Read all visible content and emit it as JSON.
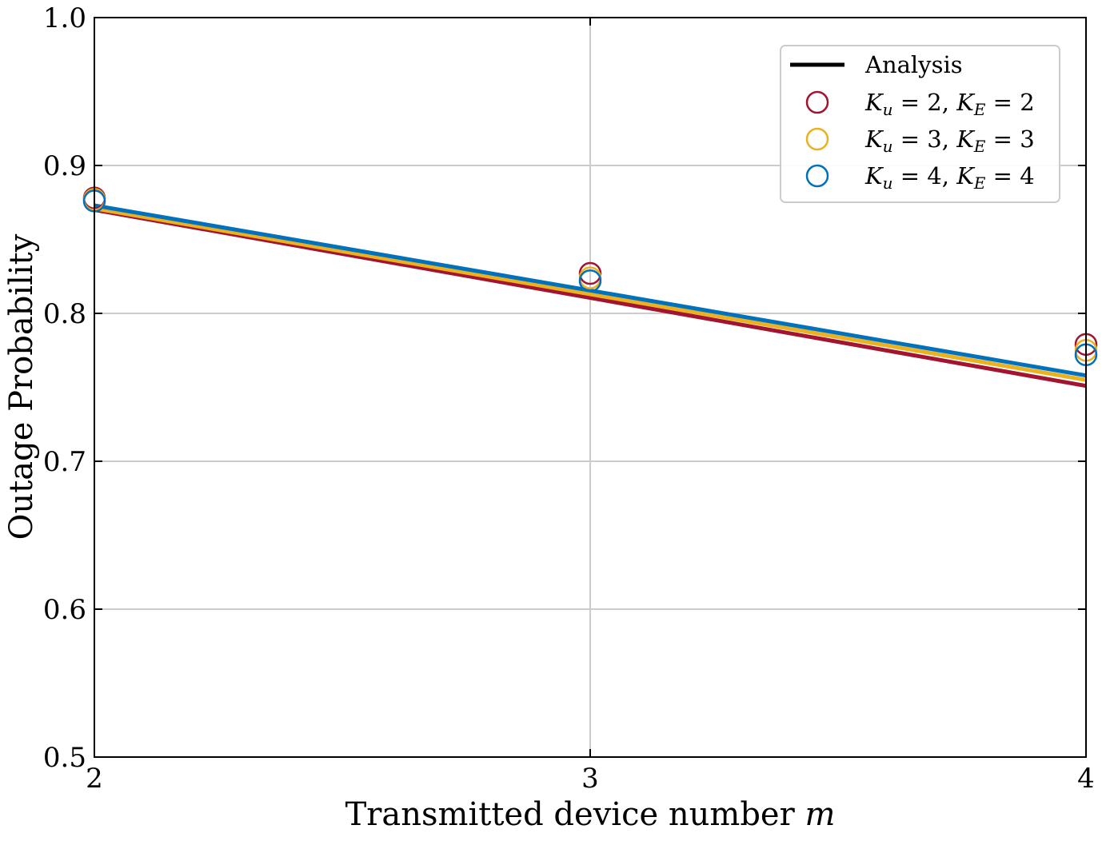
{
  "chart_data": {
    "type": "line",
    "xlabel": "Transmitted device number",
    "xlabel_var": "m",
    "ylabel": "Outage Probability",
    "xlim": [
      2,
      4
    ],
    "ylim": [
      0.5,
      1.0
    ],
    "xticks": [
      "2",
      "3",
      "4"
    ],
    "yticks": [
      "0.5",
      "0.6",
      "0.7",
      "0.8",
      "0.9",
      "1.0"
    ],
    "grid": true,
    "legend_position": "top-right",
    "analysis_label": "Analysis",
    "series": [
      {
        "name": "K_u = 2, K_E = 2",
        "label_parts": {
          "a": "K",
          "a_sub": "u",
          "a_val": "2",
          "b": "K",
          "b_sub": "E",
          "b_val": "2"
        },
        "color": "#A2142F",
        "analysis_x": [
          2,
          4
        ],
        "analysis_y": [
          0.87,
          0.751
        ],
        "sim_x": [
          2,
          3,
          4
        ],
        "sim_y": [
          0.878,
          0.827,
          0.779
        ]
      },
      {
        "name": "K_u = 3, K_E = 3",
        "label_parts": {
          "a": "K",
          "a_sub": "u",
          "a_val": "3",
          "b": "K",
          "b_sub": "E",
          "b_val": "3"
        },
        "color": "#EDB120",
        "analysis_x": [
          2,
          4
        ],
        "analysis_y": [
          0.871,
          0.755
        ],
        "sim_x": [
          2,
          3,
          4
        ],
        "sim_y": [
          0.877,
          0.824,
          0.775
        ]
      },
      {
        "name": "K_u = 4, K_E = 4",
        "label_parts": {
          "a": "K",
          "a_sub": "u",
          "a_val": "4",
          "b": "K",
          "b_sub": "E",
          "b_val": "4"
        },
        "color": "#0072BD",
        "analysis_x": [
          2,
          4
        ],
        "analysis_y": [
          0.873,
          0.758
        ],
        "sim_x": [
          2,
          3,
          4
        ],
        "sim_y": [
          0.876,
          0.822,
          0.772
        ]
      }
    ]
  }
}
